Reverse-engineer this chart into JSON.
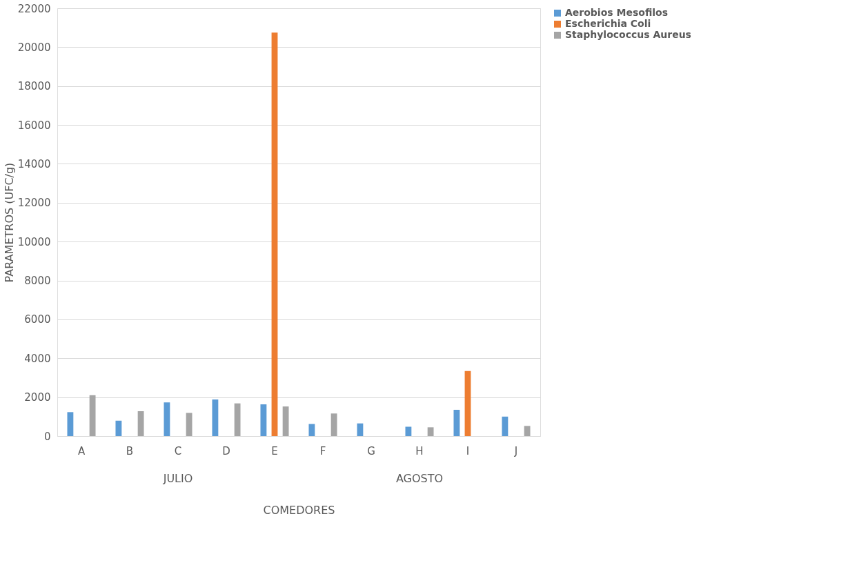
{
  "chart_data": {
    "type": "bar",
    "ylabel": "PARAMETROS (UFC/g)",
    "xlabel": "COMEDORES",
    "categories": [
      "A",
      "B",
      "C",
      "D",
      "E",
      "F",
      "G",
      "H",
      "I",
      "J"
    ],
    "annotations": [
      "JULIO",
      "AGOSTO"
    ],
    "series": [
      {
        "name": "Aerobios Mesofilos",
        "color": "#5b9bd5",
        "values": [
          1230,
          790,
          1730,
          1880,
          1630,
          620,
          650,
          480,
          1350,
          1000
        ]
      },
      {
        "name": "Escherichia Coli",
        "color": "#ed7d31",
        "values": [
          null,
          null,
          null,
          null,
          20750,
          null,
          null,
          null,
          3340,
          null
        ]
      },
      {
        "name": "Staphylococcus Aureus",
        "color": "#a5a5a5",
        "values": [
          2100,
          1280,
          1190,
          1680,
          1520,
          1160,
          null,
          450,
          null,
          520
        ]
      }
    ],
    "ylim": [
      0,
      22000
    ],
    "yticks": [
      0,
      2000,
      4000,
      6000,
      8000,
      10000,
      12000,
      14000,
      16000,
      18000,
      20000,
      22000
    ],
    "grid": "y",
    "legend": "right"
  }
}
